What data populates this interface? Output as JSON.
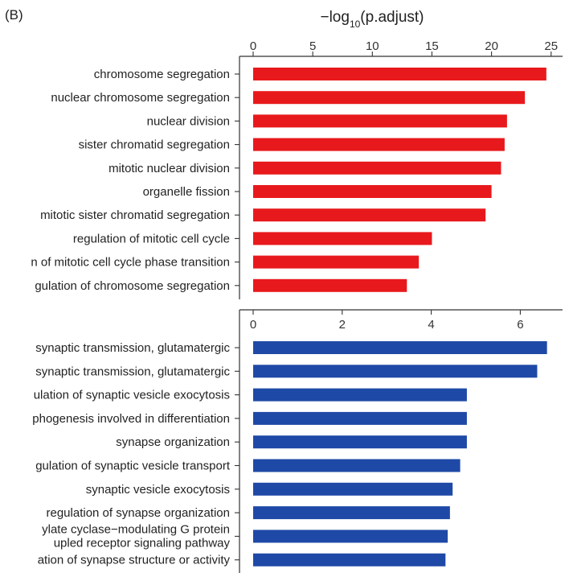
{
  "panel_label": "(B)",
  "chart_data": [
    {
      "type": "bar",
      "orientation": "horizontal",
      "title": "",
      "xlabel_main": "−log",
      "xlabel_sub": "10",
      "xlabel_rest": "(p.adjust)",
      "xlim": [
        0,
        25.5
      ],
      "ticks": [
        0,
        5,
        10,
        15,
        20,
        25
      ],
      "tick_labels": [
        "0",
        "5",
        "10",
        "15",
        "20",
        "25"
      ],
      "color": "#e8191c",
      "categories": [
        "chromosome segregation",
        "nuclear chromosome segregation",
        "nuclear division",
        "sister chromatid segregation",
        "mitotic nuclear division",
        "organelle fission",
        "mitotic sister chromatid segregation",
        "regulation of mitotic cell cycle",
        "n of mitotic cell cycle phase transition",
        "gulation of chromosome segregation"
      ],
      "values": [
        24.6,
        22.8,
        21.3,
        21.1,
        20.8,
        20.0,
        19.5,
        15.0,
        13.9,
        12.9
      ]
    },
    {
      "type": "bar",
      "orientation": "horizontal",
      "title": "",
      "xlim": [
        0,
        6.85
      ],
      "ticks": [
        0,
        2,
        4,
        6
      ],
      "tick_labels": [
        "0",
        "2",
        "4",
        "6"
      ],
      "color": "#1f49a6",
      "categories": [
        "synaptic transmission, glutamatergic",
        "synaptic transmission, glutamatergic",
        "ulation of synaptic vesicle exocytosis",
        "phogenesis involved in differentiation",
        "synapse organization",
        "gulation of synaptic vesicle transport",
        "synaptic vesicle exocytosis",
        "regulation of synapse organization",
        [
          "ylate cyclase−modulating G protein",
          "upled receptor signaling pathway"
        ],
        "ation of synapse structure or activity"
      ],
      "values": [
        6.6,
        6.38,
        4.8,
        4.8,
        4.8,
        4.65,
        4.48,
        4.42,
        4.37,
        4.32
      ]
    }
  ]
}
